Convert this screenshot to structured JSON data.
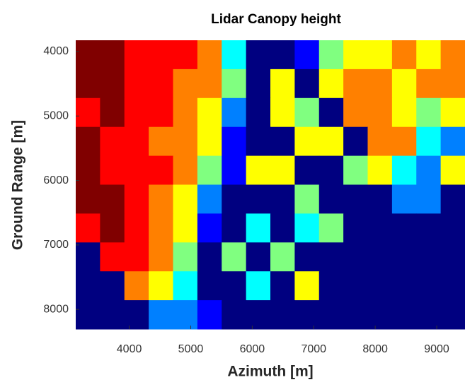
{
  "chart_data": {
    "type": "heatmap",
    "title": "Lidar Canopy height",
    "xlabel": "Azimuth [m]",
    "ylabel": "Ground Range [m]",
    "xlim": [
      3130,
      9460
    ],
    "ylim": [
      3825,
      8305
    ],
    "xticks": [
      4000,
      5000,
      6000,
      7000,
      8000,
      9000
    ],
    "yticks": [
      4000,
      5000,
      6000,
      7000,
      8000
    ],
    "colormap": "jet",
    "z": [
      [
        8,
        8,
        7,
        7,
        7,
        6,
        3,
        0,
        0,
        1,
        4,
        5,
        5,
        6,
        5,
        6
      ],
      [
        8,
        8,
        7,
        7,
        6,
        6,
        4,
        0,
        5,
        0,
        5,
        6,
        6,
        5,
        6,
        6
      ],
      [
        7,
        8,
        7,
        7,
        6,
        5,
        2,
        0,
        5,
        4,
        0,
        6,
        6,
        5,
        4,
        5
      ],
      [
        8,
        7,
        7,
        6,
        6,
        5,
        1,
        0,
        0,
        5,
        5,
        0,
        6,
        6,
        3,
        2
      ],
      [
        8,
        7,
        7,
        7,
        6,
        4,
        1,
        5,
        5,
        0,
        0,
        4,
        5,
        3,
        2,
        5
      ],
      [
        8,
        8,
        7,
        6,
        5,
        2,
        0,
        0,
        0,
        4,
        0,
        0,
        0,
        2,
        2,
        0
      ],
      [
        7,
        8,
        7,
        6,
        5,
        1,
        0,
        3,
        0,
        3,
        4,
        0,
        0,
        0,
        0,
        0
      ],
      [
        0,
        7,
        7,
        6,
        4,
        0,
        4,
        0,
        4,
        0,
        0,
        0,
        0,
        0,
        0,
        0
      ],
      [
        0,
        0,
        6,
        5,
        3,
        0,
        0,
        3,
        0,
        5,
        0,
        0,
        0,
        0,
        0,
        0
      ],
      [
        0,
        0,
        0,
        2,
        2,
        1,
        0,
        0,
        0,
        0,
        0,
        0,
        0,
        0,
        0,
        0
      ]
    ]
  }
}
